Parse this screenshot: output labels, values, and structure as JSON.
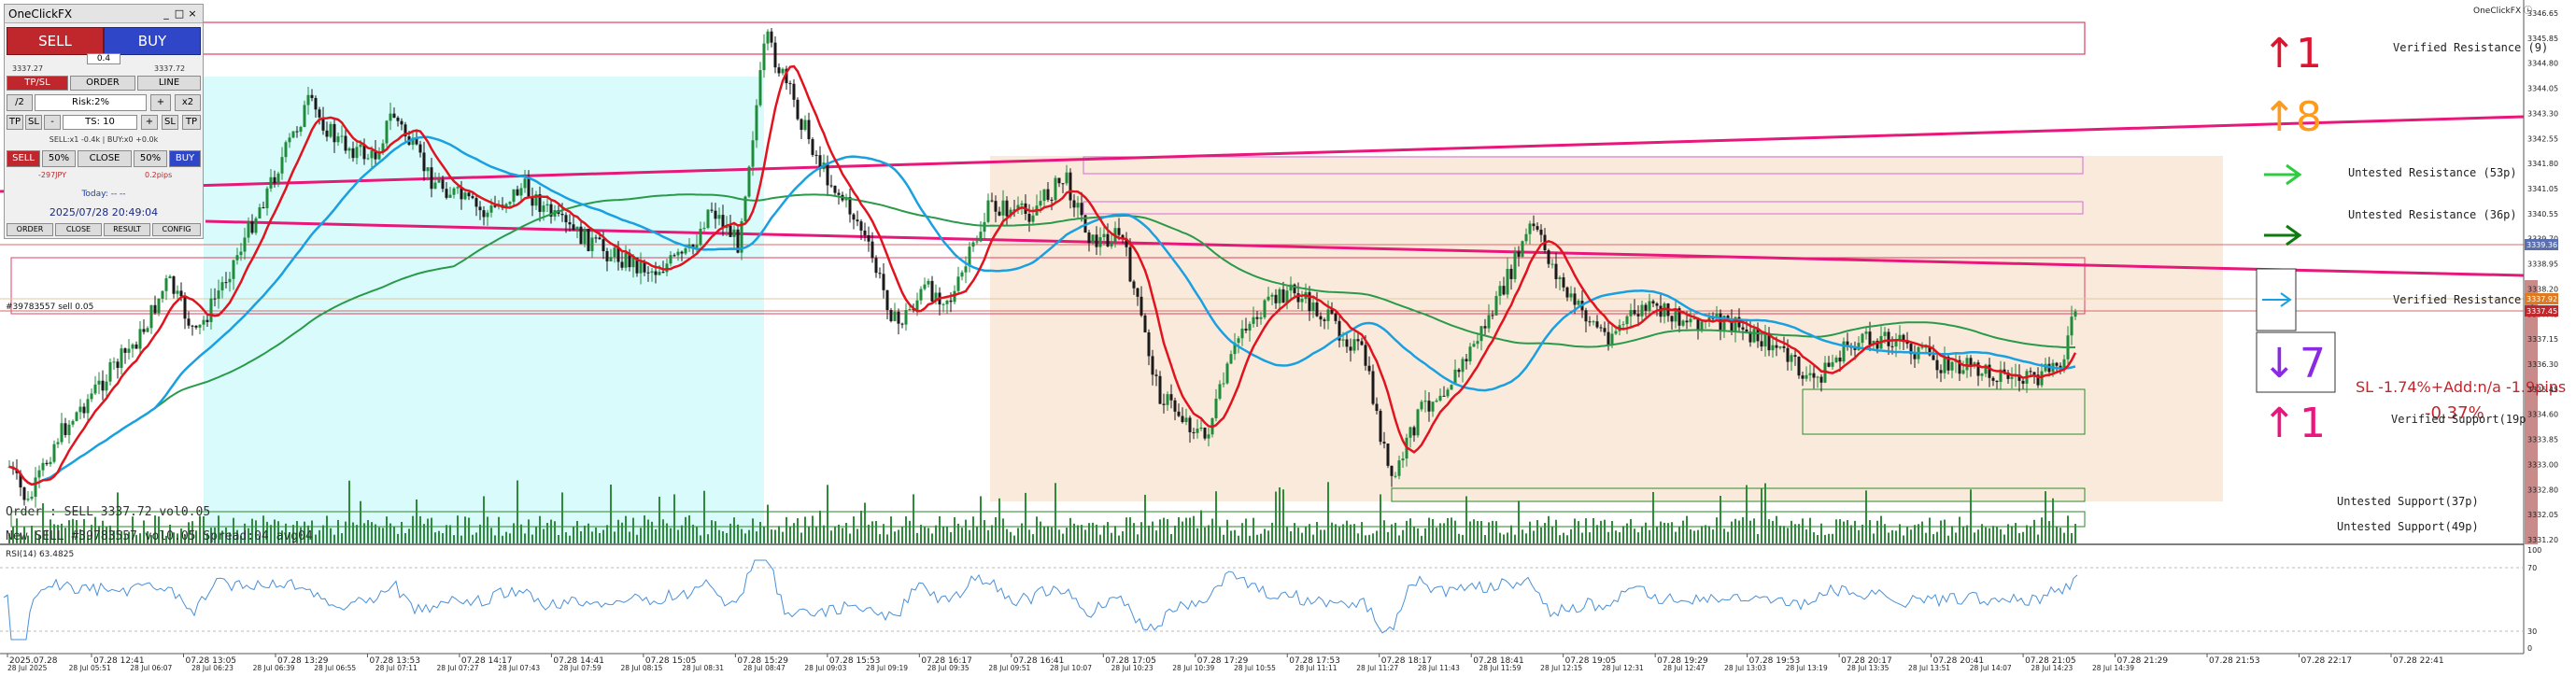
{
  "panel": {
    "title": "OneClickFX",
    "controls": [
      "_",
      "□",
      "×"
    ],
    "sell_label": "SELL",
    "buy_label": "BUY",
    "spread": "0.4",
    "sell_price": "3337.27",
    "buy_price": "3337.72",
    "tabs": [
      "TP/SL",
      "ORDER",
      "LINE"
    ],
    "half_label": "/2",
    "risk_label": "Risk:2%",
    "plus": "+",
    "x2_label": "x2",
    "tp_label": "TP",
    "sl_label": "SL",
    "minus": "-",
    "ts_label": "TS: 10",
    "position_info": "SELL:x1 -0.4k | BUY:x0 +0.0k",
    "close_row": [
      "SELL",
      "50%",
      "CLOSE",
      "50%",
      "BUY"
    ],
    "pnl_left": "-297JPY",
    "pnl_right": "0.2pips",
    "today_label": "Today: -- --",
    "datetime": "2025/07/28  20:49:04",
    "bottom_tabs": [
      "ORDER",
      "CLOSE",
      "RESULT",
      "CONFIG"
    ]
  },
  "chart": {
    "corner_label": "OneClickFX ⓘ",
    "order_line_label": "#39783557 sell 0.05",
    "order_info": "Order : SELL 3337.72 vol0.05",
    "new_sell_info": "New SELL #39783557 vol0.05 Spread:04 avg04",
    "signals": [
      {
        "arrow": "↑",
        "count": "1",
        "color": "#e0122e"
      },
      {
        "arrow": "↑",
        "count": "8",
        "color": "#ff9a1a"
      },
      {
        "arrow": "↓",
        "count": "7",
        "color": "#8a2be2"
      },
      {
        "arrow": "↑",
        "count": "1",
        "color": "#ee1480"
      }
    ],
    "sl_info": "SL -1.74%+Add:n/a -1.9pips",
    "pct_info": "-0.37%",
    "zone_labels": [
      "Verified Resistance (9)",
      "Untested Resistance (53p)",
      "Untested Resistance (36p)",
      "Verified Resistance (2",
      "Verified Support(19p",
      "Untested Support(37p)",
      "Untested Support(49p)"
    ],
    "rsi_label": "RSI(14) 63.4825",
    "price_ticks": [
      "3346.65",
      "3345.85",
      "3344.80",
      "3344.05",
      "3343.30",
      "3342.55",
      "3341.80",
      "3341.05",
      "3340.55",
      "3339.70",
      "3338.95",
      "3338.20",
      "3337.45",
      "3337.15",
      "3336.30",
      "3335.45",
      "3334.60",
      "3333.85",
      "3333.00",
      "3332.80",
      "3332.05",
      "3331.20"
    ],
    "price_tags": [
      {
        "text": "3339.36",
        "color": "#5a6fb0"
      },
      {
        "text": "3337.92",
        "color": "#e07a20"
      },
      {
        "text": "3337.45",
        "color": "#c0272d"
      }
    ],
    "rsi_ticks": [
      "100",
      "70",
      "30",
      "0"
    ],
    "time_top": [
      "2025.07.28",
      "07.28 12:41",
      "07.28 13:05",
      "07.28 13:29",
      "07.28 13:53",
      "07.28 14:17",
      "07.28 14:41",
      "07.28 15:05",
      "07.28 15:29",
      "07.28 15:53",
      "07.28 16:17",
      "07.28 16:41",
      "07.28 17:05",
      "07.28 17:29",
      "07.28 17:53",
      "07.28 18:17",
      "07.28 18:41",
      "07.28 19:05",
      "07.28 19:29",
      "07.28 19:53",
      "07.28 20:17",
      "07.28 20:41",
      "07.28 21:05",
      "07.28 21:29",
      "07.28 21:53",
      "07.28 22:17",
      "07.28 22:41"
    ],
    "time_bottom": [
      "28 Jul 2025",
      "28 Jul 05:51",
      "28 Jul 06:07",
      "28 Jul 06:23",
      "28 Jul 06:39",
      "28 Jul 06:55",
      "28 Jul 07:11",
      "28 Jul 07:27",
      "28 Jul 07:43",
      "28 Jul 07:59",
      "28 Jul 08:15",
      "28 Jul 08:31",
      "28 Jul 08:47",
      "28 Jul 09:03",
      "28 Jul 09:19",
      "28 Jul 09:35",
      "28 Jul 09:51",
      "28 Jul 10:07",
      "28 Jul 10:23",
      "28 Jul 10:39",
      "28 Jul 10:55",
      "28 Jul 11:11",
      "28 Jul 11:27",
      "28 Jul 11:43",
      "28 Jul 11:59",
      "28 Jul 12:15",
      "28 Jul 12:31",
      "28 Jul 12:47",
      "28 Jul 13:03",
      "28 Jul 13:19",
      "28 Jul 13:35",
      "28 Jul 13:51",
      "28 Jul 14:07",
      "28 Jul 14:23",
      "28 Jul 14:39"
    ],
    "colors": {
      "bull": "#1e8c3a",
      "bear": "#1a1a1a",
      "ma_fast": "#e0141e",
      "ma_mid": "#1aa0e0",
      "ma_slow": "#2a9a4a",
      "trendline": "#e8177a",
      "rsi": "#4a90d9",
      "volume": "#2e8b3a",
      "zone_cyan": "#d9fbfb",
      "zone_peach": "#faeadc"
    }
  }
}
